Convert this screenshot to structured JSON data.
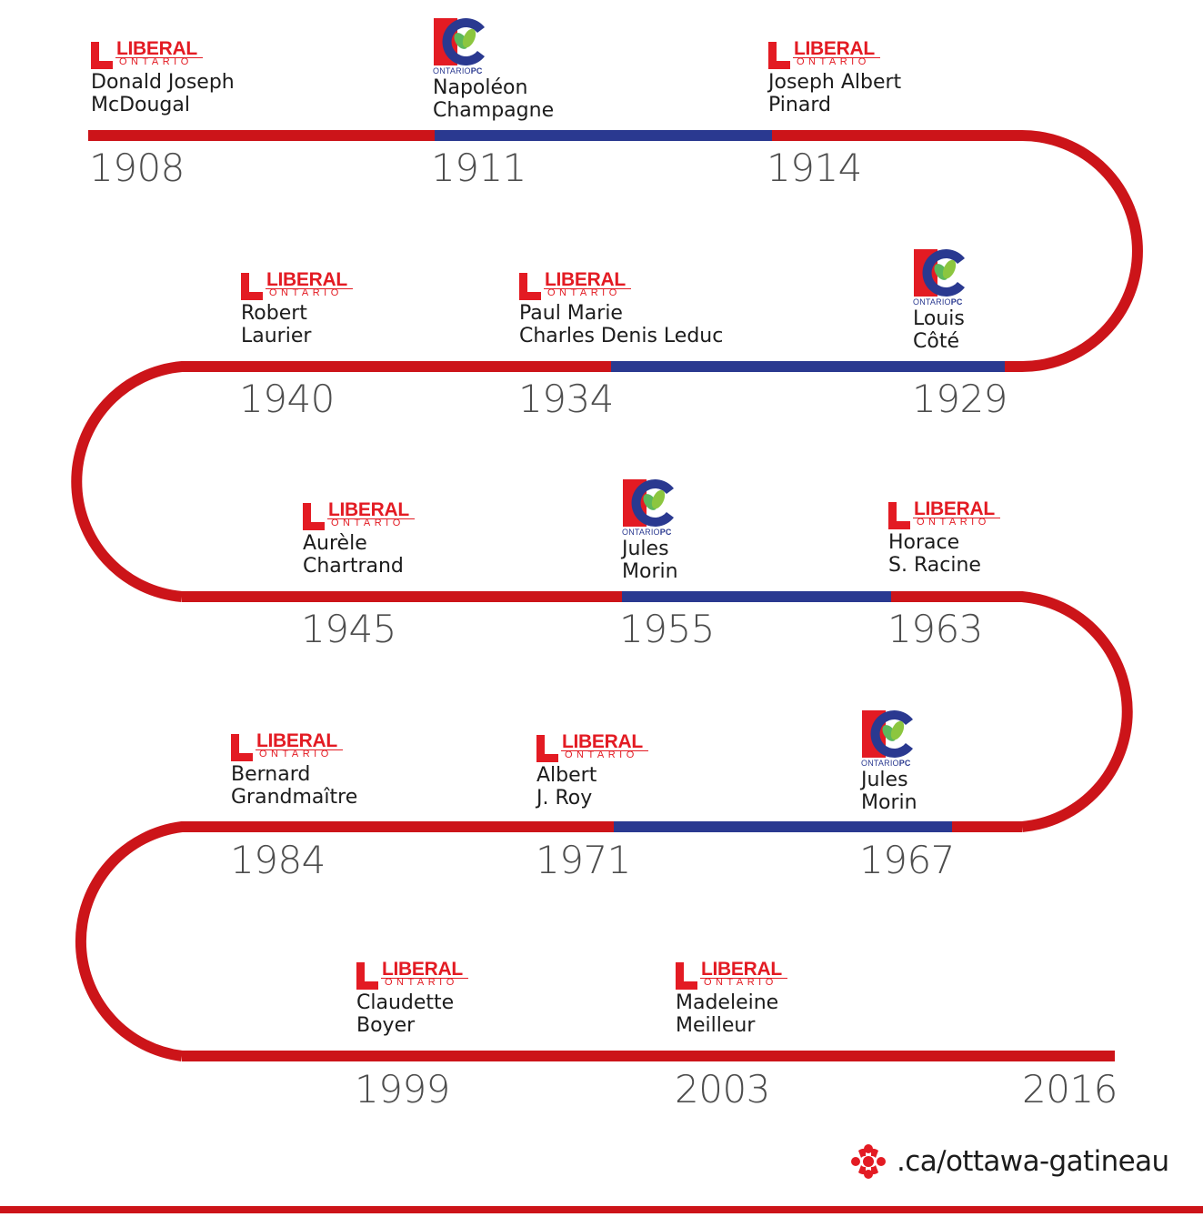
{
  "colors": {
    "liberal": "#cc1419",
    "pc": "#2a3990",
    "year_text": "#4d4d4d",
    "name_text": "#1c1c1c"
  },
  "logos": {
    "liberal": {
      "word": "LIBERAL",
      "sub": "ONTARIO"
    },
    "pc": {
      "word_light": "ONTARIO",
      "word_bold": "PC"
    }
  },
  "entries": [
    {
      "party": "liberal",
      "name_line1": "Donald Joseph",
      "name_line2": "McDougal",
      "year": "1908"
    },
    {
      "party": "pc",
      "name_line1": "Napoléon",
      "name_line2": "Champagne",
      "year": "1911"
    },
    {
      "party": "liberal",
      "name_line1": "Joseph Albert",
      "name_line2": "Pinard",
      "year": "1914"
    },
    {
      "party": "pc",
      "name_line1": "Louis",
      "name_line2": "Côté",
      "year": "1929"
    },
    {
      "party": "liberal",
      "name_line1": "Paul Marie",
      "name_line2": "Charles Denis Leduc",
      "year": "1934"
    },
    {
      "party": "liberal",
      "name_line1": "Robert",
      "name_line2": "Laurier",
      "year": "1940"
    },
    {
      "party": "liberal",
      "name_line1": "Aurèle",
      "name_line2": "Chartrand",
      "year": "1945"
    },
    {
      "party": "pc",
      "name_line1": "Jules",
      "name_line2": "Morin",
      "year": "1955"
    },
    {
      "party": "liberal",
      "name_line1": "Horace",
      "name_line2": "S. Racine",
      "year": "1963"
    },
    {
      "party": "pc",
      "name_line1": "Jules",
      "name_line2": "Morin",
      "year": "1967"
    },
    {
      "party": "liberal",
      "name_line1": "Albert",
      "name_line2": "J. Roy",
      "year": "1971"
    },
    {
      "party": "liberal",
      "name_line1": "Bernard",
      "name_line2": "Grandmaître",
      "year": "1984"
    },
    {
      "party": "liberal",
      "name_line1": "Claudette",
      "name_line2": "Boyer",
      "year": "1999"
    },
    {
      "party": "liberal",
      "name_line1": "Madeleine",
      "name_line2": "Meilleur",
      "year": "2003"
    }
  ],
  "end_year": "2016",
  "footer": {
    "url": ".ca/ottawa-gatineau"
  }
}
